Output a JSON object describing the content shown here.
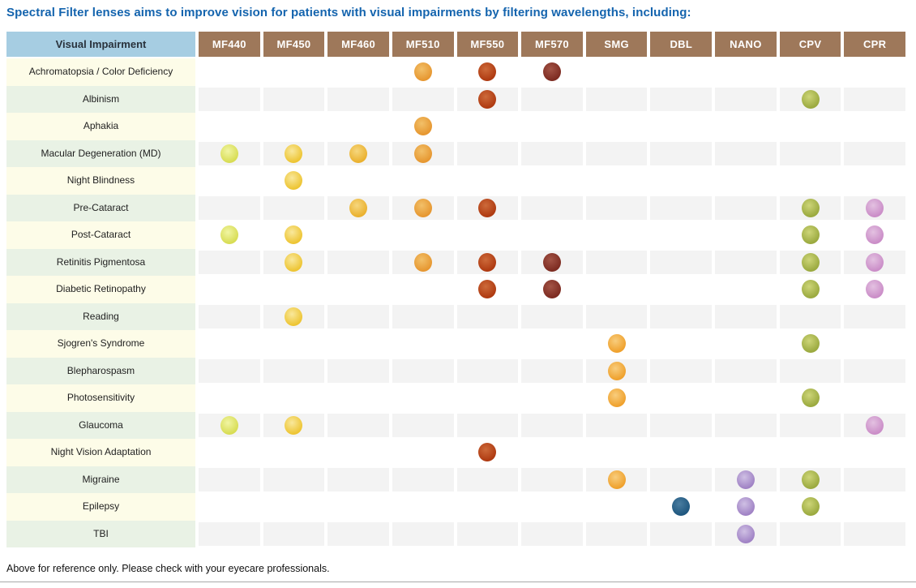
{
  "colors": {
    "title_text": "#1464ae",
    "header_corner_bg": "#a6cde2",
    "header_filter_bg": "#9e785a",
    "header_filter_text": "#ffffff",
    "row_label_cream": "#fdfce8",
    "row_label_green": "#e9f2e5",
    "data_cell_gray": "#f3f3f3",
    "label_text": "#1f1f1f",
    "note_text": "#111111",
    "divider": "#a9a9a9"
  },
  "chart_data": {
    "type": "table",
    "title": "Spectral Filter lenses aims to improve vision for patients with visual impairments by filtering wavelengths, including:",
    "corner_header": "Visual Impairment",
    "columns": [
      {
        "id": "MF440",
        "label": "MF440",
        "dot_base": "#d7dc52",
        "dot_light": "#f1f5a3"
      },
      {
        "id": "MF450",
        "label": "MF450",
        "dot_base": "#edc431",
        "dot_light": "#f9e89c"
      },
      {
        "id": "MF460",
        "label": "MF460",
        "dot_base": "#eab02d",
        "dot_light": "#f6d77e"
      },
      {
        "id": "MF510",
        "label": "MF510",
        "dot_base": "#e6962f",
        "dot_light": "#f2c069"
      },
      {
        "id": "MF550",
        "label": "MF550",
        "dot_base": "#ae3910",
        "dot_light": "#cd6a3a"
      },
      {
        "id": "MF570",
        "label": "MF570",
        "dot_base": "#7c2a20",
        "dot_light": "#a35446"
      },
      {
        "id": "SMG",
        "label": "SMG",
        "dot_base": "#efa02b",
        "dot_light": "#f8cd7d"
      },
      {
        "id": "DBL",
        "label": "DBL",
        "dot_base": "#1e567e",
        "dot_light": "#4a7da0"
      },
      {
        "id": "NANO",
        "label": "NANO",
        "dot_base": "#9f81c4",
        "dot_light": "#cfc0e4"
      },
      {
        "id": "CPV",
        "label": "CPV",
        "dot_base": "#9aa93e",
        "dot_light": "#cdd578"
      },
      {
        "id": "CPR",
        "label": "CPR",
        "dot_base": "#ca8cc7",
        "dot_light": "#e3c1e1"
      }
    ],
    "rows": [
      {
        "label": "Achromatopsia / Color Deficiency",
        "filters": [
          "MF510",
          "MF550",
          "MF570"
        ]
      },
      {
        "label": "Albinism",
        "filters": [
          "MF550",
          "CPV"
        ]
      },
      {
        "label": "Aphakia",
        "filters": [
          "MF510"
        ]
      },
      {
        "label": "Macular Degeneration (MD)",
        "filters": [
          "MF440",
          "MF450",
          "MF460",
          "MF510"
        ]
      },
      {
        "label": "Night Blindness",
        "filters": [
          "MF450"
        ]
      },
      {
        "label": "Pre-Cataract",
        "filters": [
          "MF460",
          "MF510",
          "MF550",
          "CPV",
          "CPR"
        ]
      },
      {
        "label": "Post-Cataract",
        "filters": [
          "MF440",
          "MF450",
          "CPV",
          "CPR"
        ]
      },
      {
        "label": "Retinitis Pigmentosa",
        "filters": [
          "MF450",
          "MF510",
          "MF550",
          "MF570",
          "CPV",
          "CPR"
        ]
      },
      {
        "label": "Diabetic Retinopathy",
        "filters": [
          "MF550",
          "MF570",
          "CPV",
          "CPR"
        ]
      },
      {
        "label": "Reading",
        "filters": [
          "MF450"
        ]
      },
      {
        "label": "Sjogren's Syndrome",
        "filters": [
          "SMG",
          "CPV"
        ]
      },
      {
        "label": "Blepharospasm",
        "filters": [
          "SMG"
        ]
      },
      {
        "label": "Photosensitivity",
        "filters": [
          "SMG",
          "CPV"
        ]
      },
      {
        "label": "Glaucoma",
        "filters": [
          "MF440",
          "MF450",
          "CPR"
        ]
      },
      {
        "label": "Night Vision Adaptation",
        "filters": [
          "MF550"
        ]
      },
      {
        "label": "Migraine",
        "filters": [
          "SMG",
          "NANO",
          "CPV"
        ]
      },
      {
        "label": "Epilepsy",
        "filters": [
          "DBL",
          "NANO",
          "CPV"
        ]
      },
      {
        "label": "TBI",
        "filters": [
          "NANO"
        ]
      }
    ],
    "note": "Above for reference only. Please check with your eyecare professionals."
  }
}
